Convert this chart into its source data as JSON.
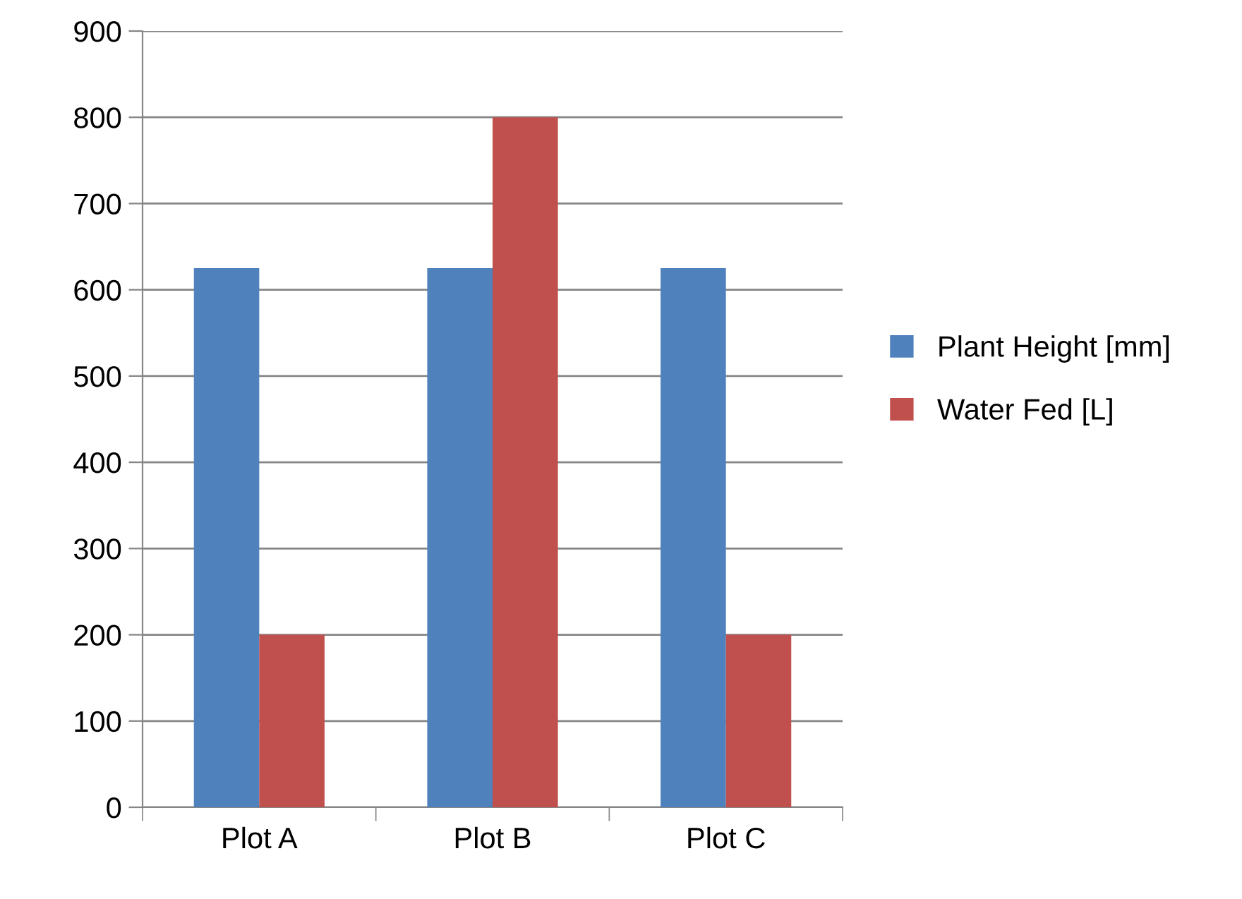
{
  "chart_data": {
    "type": "bar",
    "categories": [
      "Plot A",
      "Plot B",
      "Plot C"
    ],
    "series": [
      {
        "name": "Plant Height [mm]",
        "color": "#4f81bd",
        "values": [
          625,
          625,
          625
        ]
      },
      {
        "name": "Water Fed [L]",
        "color": "#c0504d",
        "values": [
          200,
          800,
          200
        ]
      }
    ],
    "ylim": [
      0,
      900
    ],
    "yticks": [
      0,
      100,
      200,
      300,
      400,
      500,
      600,
      700,
      800,
      900
    ],
    "grid": "y",
    "legend": "right"
  }
}
